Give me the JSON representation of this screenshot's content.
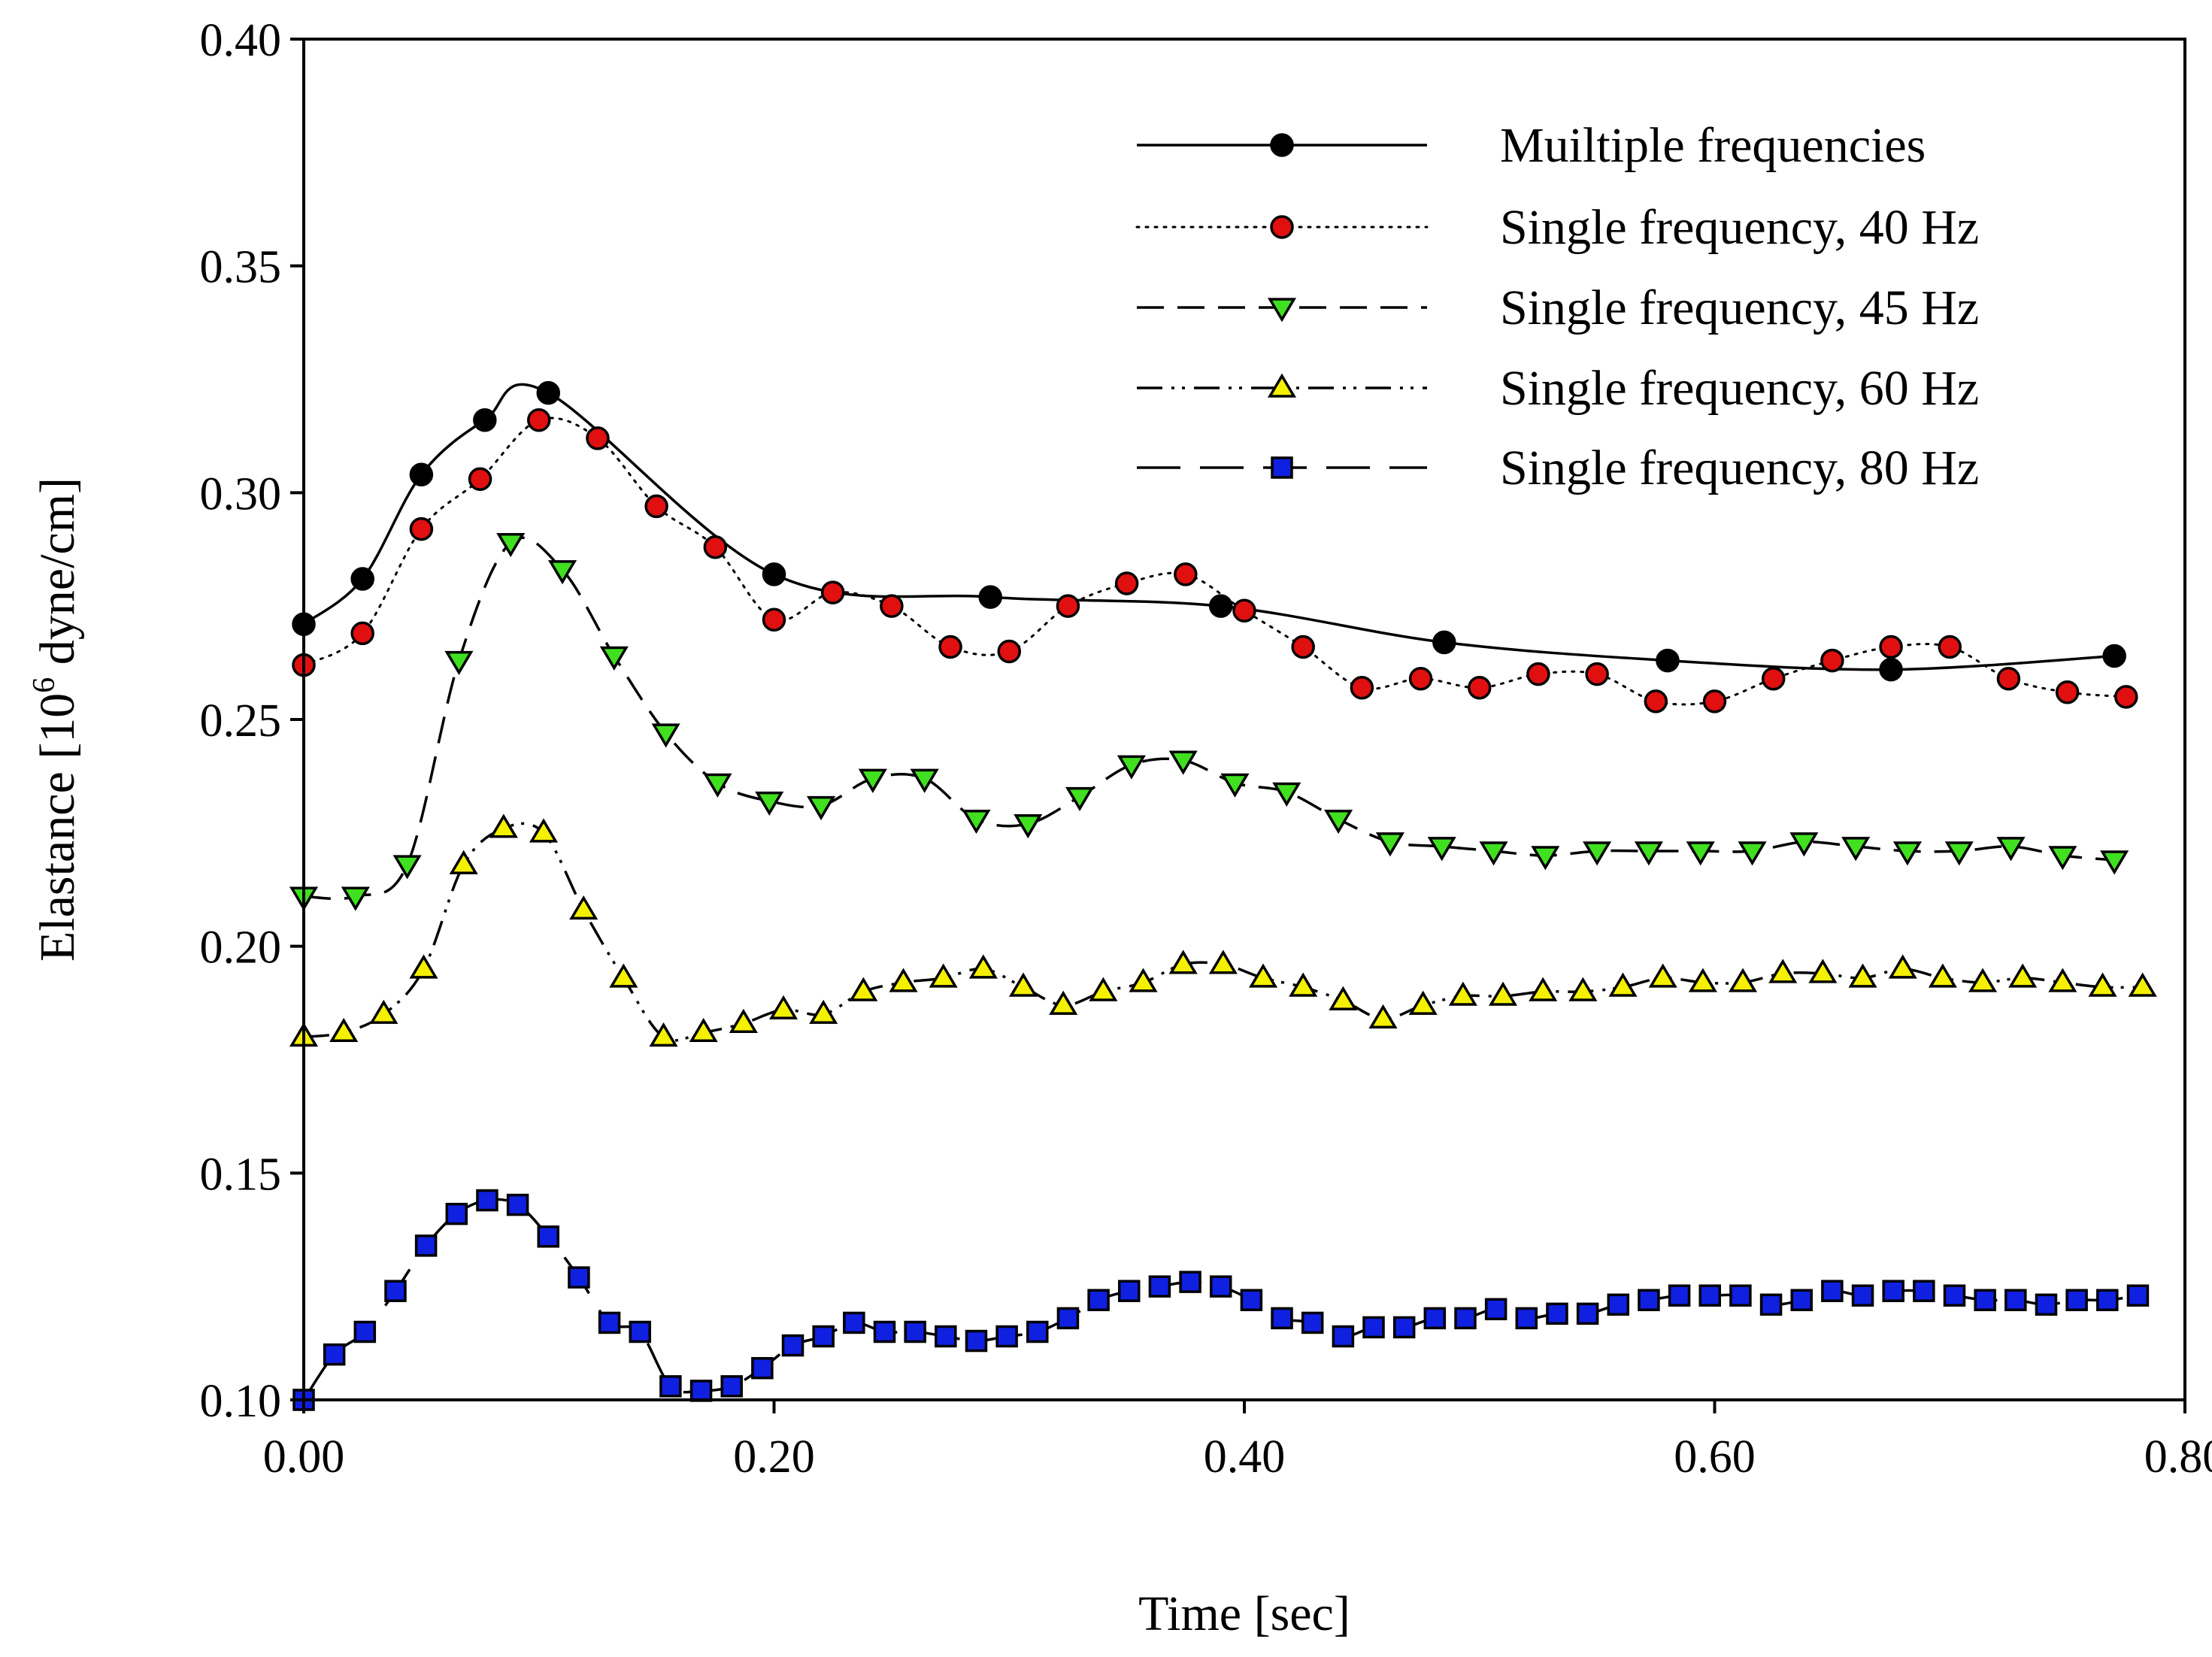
{
  "chart_data": {
    "type": "line",
    "title": "",
    "xlabel": "Time [sec]",
    "ylabel_main": "Elastance [10",
    "ylabel_sup": "6",
    "ylabel_rest": " dyne/cm]",
    "xlim": [
      0.0,
      0.8
    ],
    "ylim": [
      0.1,
      0.4
    ],
    "x_ticks": [
      0.0,
      0.2,
      0.4,
      0.6,
      0.8
    ],
    "x_tick_labels": [
      "0.00",
      "0.20",
      "0.40",
      "0.60",
      "0.80"
    ],
    "y_ticks": [
      0.1,
      0.15,
      0.2,
      0.25,
      0.3,
      0.35,
      0.4
    ],
    "y_tick_labels": [
      "0.10",
      "0.15",
      "0.20",
      "0.25",
      "0.30",
      "0.35",
      "0.40"
    ],
    "grid": false,
    "legend_position": "top-right",
    "series": [
      {
        "name": "Muiltiple frequencies",
        "marker": "circle",
        "marker_color": "#000000",
        "line_style": "solid",
        "x": [
          0.0,
          0.025,
          0.05,
          0.077,
          0.104,
          0.2,
          0.292,
          0.39,
          0.485,
          0.58,
          0.675,
          0.77
        ],
        "y": [
          0.271,
          0.281,
          0.304,
          0.316,
          0.322,
          0.282,
          0.277,
          0.275,
          0.267,
          0.263,
          0.261,
          0.264
        ]
      },
      {
        "name": "Single frequency, 40 Hz",
        "marker": "circle",
        "marker_color": "#e01010",
        "line_style": "dotted",
        "x": [
          0.0,
          0.025,
          0.05,
          0.075,
          0.1,
          0.125,
          0.15,
          0.175,
          0.2,
          0.225,
          0.25,
          0.275,
          0.3,
          0.325,
          0.35,
          0.375,
          0.4,
          0.425,
          0.45,
          0.475,
          0.5,
          0.525,
          0.55,
          0.575,
          0.6,
          0.625,
          0.65,
          0.675,
          0.7,
          0.725,
          0.75,
          0.775
        ],
        "y": [
          0.262,
          0.269,
          0.292,
          0.303,
          0.316,
          0.312,
          0.297,
          0.288,
          0.272,
          0.278,
          0.275,
          0.266,
          0.265,
          0.275,
          0.28,
          0.282,
          0.274,
          0.266,
          0.257,
          0.259,
          0.257,
          0.26,
          0.26,
          0.254,
          0.254,
          0.259,
          0.263,
          0.266,
          0.266,
          0.259,
          0.256,
          0.255
        ]
      },
      {
        "name": "Single frequency, 45 Hz",
        "marker": "triangle-down",
        "marker_color": "#40e020",
        "line_style": "dashed",
        "x": [
          0.0,
          0.022,
          0.044,
          0.066,
          0.088,
          0.11,
          0.132,
          0.154,
          0.176,
          0.198,
          0.22,
          0.242,
          0.264,
          0.286,
          0.308,
          0.33,
          0.352,
          0.374,
          0.396,
          0.418,
          0.44,
          0.462,
          0.484,
          0.506,
          0.528,
          0.55,
          0.572,
          0.594,
          0.616,
          0.638,
          0.66,
          0.682,
          0.704,
          0.726,
          0.748,
          0.77
        ],
        "y": [
          0.211,
          0.211,
          0.218,
          0.263,
          0.289,
          0.283,
          0.264,
          0.247,
          0.236,
          0.232,
          0.231,
          0.237,
          0.237,
          0.228,
          0.227,
          0.233,
          0.24,
          0.241,
          0.236,
          0.234,
          0.228,
          0.223,
          0.222,
          0.221,
          0.22,
          0.221,
          0.221,
          0.221,
          0.221,
          0.223,
          0.222,
          0.221,
          0.221,
          0.222,
          0.22,
          0.219
        ]
      },
      {
        "name": "Single frequency, 60 Hz",
        "marker": "triangle-up",
        "marker_color": "#f4f000",
        "line_style": "dash-dot-dot",
        "x": [
          0.0,
          0.017,
          0.034,
          0.051,
          0.068,
          0.085,
          0.102,
          0.119,
          0.136,
          0.153,
          0.17,
          0.187,
          0.204,
          0.221,
          0.238,
          0.255,
          0.272,
          0.289,
          0.306,
          0.323,
          0.34,
          0.357,
          0.374,
          0.391,
          0.408,
          0.425,
          0.442,
          0.459,
          0.476,
          0.493,
          0.51,
          0.527,
          0.544,
          0.561,
          0.578,
          0.595,
          0.612,
          0.629,
          0.646,
          0.663,
          0.68,
          0.697,
          0.714,
          0.731,
          0.748,
          0.765,
          0.782
        ],
        "y": [
          0.18,
          0.181,
          0.185,
          0.195,
          0.218,
          0.226,
          0.225,
          0.208,
          0.193,
          0.18,
          0.181,
          0.183,
          0.186,
          0.185,
          0.19,
          0.192,
          0.193,
          0.195,
          0.191,
          0.187,
          0.19,
          0.192,
          0.196,
          0.196,
          0.193,
          0.191,
          0.188,
          0.184,
          0.187,
          0.189,
          0.189,
          0.19,
          0.19,
          0.191,
          0.193,
          0.192,
          0.192,
          0.194,
          0.194,
          0.193,
          0.195,
          0.193,
          0.192,
          0.193,
          0.192,
          0.191,
          0.191
        ]
      },
      {
        "name": "Single frequency, 80 Hz",
        "marker": "square",
        "marker_color": "#1020e0",
        "line_style": "long-dash",
        "x": [
          0.0,
          0.013,
          0.026,
          0.039,
          0.052,
          0.065,
          0.078,
          0.091,
          0.104,
          0.117,
          0.13,
          0.143,
          0.156,
          0.169,
          0.182,
          0.195,
          0.208,
          0.221,
          0.234,
          0.247,
          0.26,
          0.273,
          0.286,
          0.299,
          0.312,
          0.325,
          0.338,
          0.351,
          0.364,
          0.377,
          0.39,
          0.403,
          0.416,
          0.429,
          0.442,
          0.455,
          0.468,
          0.481,
          0.494,
          0.507,
          0.52,
          0.533,
          0.546,
          0.559,
          0.572,
          0.585,
          0.598,
          0.611,
          0.624,
          0.637,
          0.65,
          0.663,
          0.676,
          0.689,
          0.702,
          0.715,
          0.728,
          0.741,
          0.754,
          0.767,
          0.78
        ],
        "y": [
          0.1,
          0.11,
          0.115,
          0.124,
          0.134,
          0.141,
          0.144,
          0.143,
          0.136,
          0.127,
          0.117,
          0.115,
          0.103,
          0.102,
          0.103,
          0.107,
          0.112,
          0.114,
          0.117,
          0.115,
          0.115,
          0.114,
          0.113,
          0.114,
          0.115,
          0.118,
          0.122,
          0.124,
          0.125,
          0.126,
          0.125,
          0.122,
          0.118,
          0.117,
          0.114,
          0.116,
          0.116,
          0.118,
          0.118,
          0.12,
          0.118,
          0.119,
          0.119,
          0.121,
          0.122,
          0.123,
          0.123,
          0.123,
          0.121,
          0.122,
          0.124,
          0.123,
          0.124,
          0.124,
          0.123,
          0.122,
          0.122,
          0.121,
          0.122,
          0.122,
          0.123
        ]
      }
    ]
  }
}
